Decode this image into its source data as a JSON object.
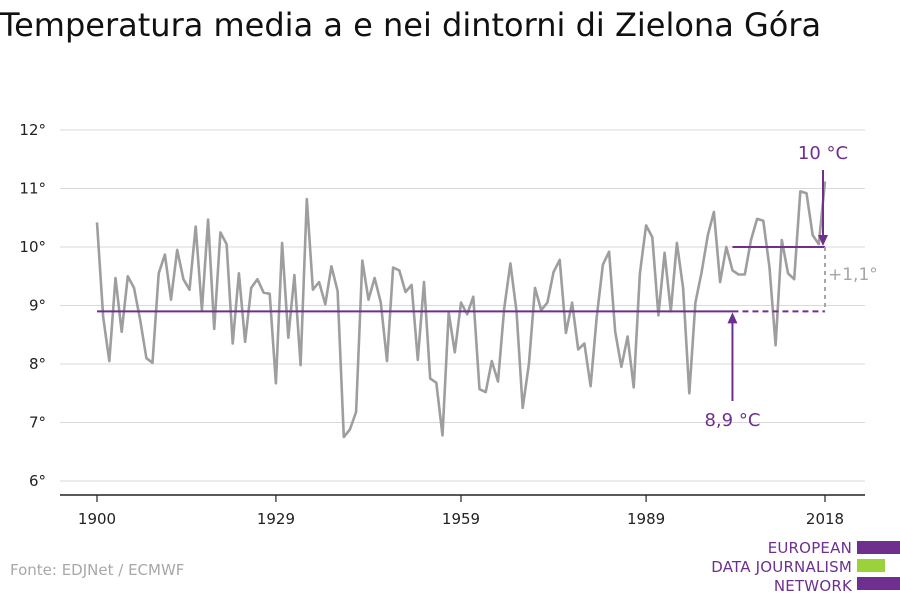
{
  "title": "Temperatura media a e nei dintorni di Zielona Góra",
  "source": "Fonte: EDJNet / ECMWF",
  "logo": {
    "lines": [
      "EUROPEAN",
      "DATA JOURNALISM",
      "NETWORK"
    ],
    "colors": [
      "#6f2f8f",
      "#9bd23a",
      "#6f2f8f"
    ]
  },
  "colors": {
    "series": "#9e9e9e",
    "accent": "#6f2f8f",
    "delta": "#a6a6a6",
    "grid": "#d9d9d9",
    "axis": "#222222"
  },
  "chart_data": {
    "type": "line",
    "title": "Temperatura media a e nei dintorni di Zielona Góra",
    "xlabel": "",
    "ylabel": "",
    "xlim": [
      1900,
      2018
    ],
    "ylim": [
      6,
      12
    ],
    "grid": true,
    "x_ticks": [
      1900,
      1929,
      1959,
      1989,
      2018
    ],
    "x_tick_labels": [
      "1900",
      "1929",
      "1959",
      "1989",
      "2018"
    ],
    "y_ticks": [
      6,
      7,
      8,
      9,
      10,
      11,
      12
    ],
    "y_tick_labels": [
      "6°",
      "7°",
      "8°",
      "9°",
      "10°",
      "11°",
      "12°"
    ],
    "series": [
      {
        "x": [
          1900,
          1901,
          1902,
          1903,
          1904,
          1905,
          1906,
          1907,
          1908,
          1909,
          1910,
          1911,
          1912,
          1913,
          1914,
          1915,
          1916,
          1917,
          1918,
          1919,
          1920,
          1921,
          1922,
          1923,
          1924,
          1925,
          1926,
          1927,
          1928,
          1929,
          1930,
          1931,
          1932,
          1933,
          1934,
          1935,
          1936,
          1937,
          1938,
          1939,
          1940,
          1941,
          1942,
          1943,
          1944,
          1945,
          1946,
          1947,
          1948,
          1949,
          1950,
          1951,
          1952,
          1953,
          1954,
          1955,
          1956,
          1957,
          1958,
          1959,
          1960,
          1961,
          1962,
          1963,
          1964,
          1965,
          1966,
          1967,
          1968,
          1969,
          1970,
          1971,
          1972,
          1973,
          1974,
          1975,
          1976,
          1977,
          1978,
          1979,
          1980,
          1981,
          1982,
          1983,
          1984,
          1985,
          1986,
          1987,
          1988,
          1989,
          1990,
          1991,
          1992,
          1993,
          1994,
          1995,
          1996,
          1997,
          1998,
          1999,
          2000,
          2001,
          2002,
          2003,
          2004,
          2005,
          2006,
          2007,
          2008,
          2009,
          2010,
          2011,
          2012,
          2013,
          2014,
          2015,
          2016,
          2017,
          2018
        ],
        "values": [
          10.42,
          8.8,
          8.05,
          9.47,
          8.55,
          9.5,
          9.3,
          8.75,
          8.1,
          8.02,
          9.55,
          9.87,
          9.1,
          9.95,
          9.45,
          9.27,
          10.35,
          8.92,
          10.47,
          8.6,
          10.25,
          10.05,
          8.35,
          9.55,
          8.38,
          9.3,
          9.45,
          9.22,
          9.2,
          7.67,
          10.07,
          8.45,
          9.52,
          7.98,
          10.82,
          9.27,
          9.4,
          9.02,
          9.67,
          9.25,
          6.75,
          6.88,
          7.18,
          9.77,
          9.1,
          9.47,
          9.05,
          8.05,
          9.65,
          9.6,
          9.23,
          9.35,
          8.07,
          9.4,
          7.75,
          7.68,
          6.78,
          8.88,
          8.2,
          9.05,
          8.85,
          9.15,
          7.57,
          7.52,
          8.05,
          7.7,
          8.95,
          9.72,
          8.9,
          7.25,
          8.0,
          9.3,
          8.92,
          9.05,
          9.57,
          9.78,
          8.53,
          9.05,
          8.25,
          8.35,
          7.62,
          8.8,
          9.7,
          9.92,
          8.55,
          7.95,
          8.47,
          7.6,
          9.55,
          10.37,
          10.17,
          8.83,
          9.9,
          8.9,
          10.07,
          9.3,
          7.5,
          9.05,
          9.57,
          10.2,
          10.6,
          9.4,
          10.0,
          9.6,
          9.53,
          9.53,
          10.12,
          10.48,
          10.45,
          9.65,
          8.32,
          10.12,
          9.55,
          9.45,
          10.95,
          10.92,
          10.2,
          10.05,
          11.12
        ]
      }
    ],
    "annotations": {
      "baseline": {
        "value": 8.9,
        "x_start": 1900,
        "x_end": 2018,
        "x_dash_from": 2003,
        "label": "8,9 °C"
      },
      "recent": {
        "value": 10.0,
        "x_start": 2003,
        "x_end": 2018,
        "label": "10 °C"
      },
      "delta": {
        "label": "+1,1°"
      }
    }
  }
}
